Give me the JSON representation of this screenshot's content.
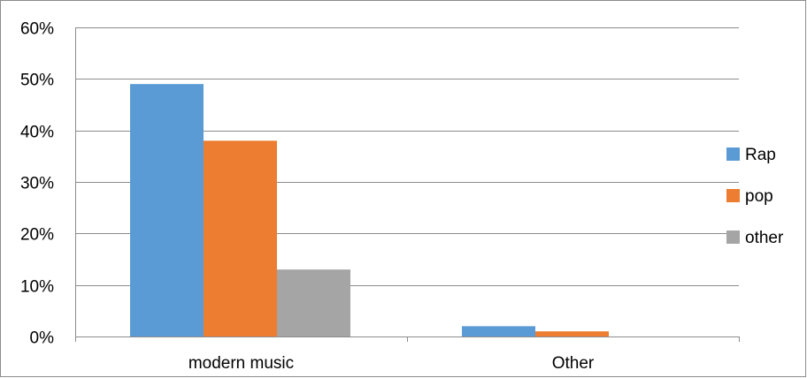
{
  "chart_data": {
    "type": "bar",
    "categories": [
      "modern music",
      "Other"
    ],
    "series": [
      {
        "name": "Rap",
        "values": [
          49,
          2
        ],
        "color": "#5B9BD5"
      },
      {
        "name": "pop",
        "values": [
          38,
          1
        ],
        "color": "#ED7D31"
      },
      {
        "name": "other",
        "values": [
          13,
          0
        ],
        "color": "#A5A5A5"
      }
    ],
    "title": "",
    "xlabel": "",
    "ylabel": "",
    "ylim": [
      0,
      60
    ],
    "yticks": [
      0,
      10,
      20,
      30,
      40,
      50,
      60
    ],
    "ytick_labels": [
      "0%",
      "10%",
      "20%",
      "30%",
      "40%",
      "50%",
      "60%"
    ],
    "grid": true,
    "gridline_color": "#8c8c8c",
    "legend_position": "right"
  }
}
